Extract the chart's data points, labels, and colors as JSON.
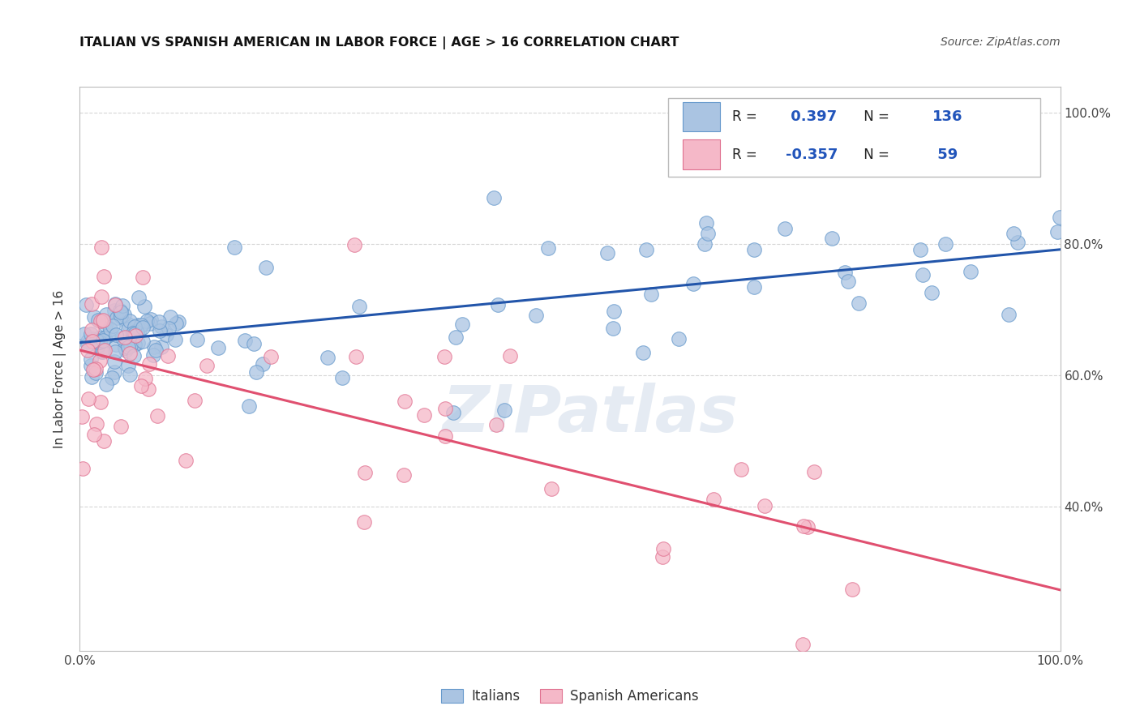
{
  "title": "ITALIAN VS SPANISH AMERICAN IN LABOR FORCE | AGE > 16 CORRELATION CHART",
  "source": "Source: ZipAtlas.com",
  "ylabel": "In Labor Force | Age > 16",
  "xlim": [
    0.0,
    1.0
  ],
  "ylim": [
    0.18,
    1.04
  ],
  "italian_R": 0.397,
  "italian_N": 136,
  "spanish_R": -0.357,
  "spanish_N": 59,
  "italian_color": "#aac4e2",
  "italian_edge": "#6699cc",
  "spanish_color": "#f5b8c8",
  "spanish_edge": "#e07090",
  "trend_blue": "#2255aa",
  "trend_pink": "#e05070",
  "background": "#ffffff",
  "grid_color": "#cccccc",
  "legend_R_color": "#2255bb",
  "legend_N_color": "#2255bb",
  "watermark_color": "#ccd8e8"
}
